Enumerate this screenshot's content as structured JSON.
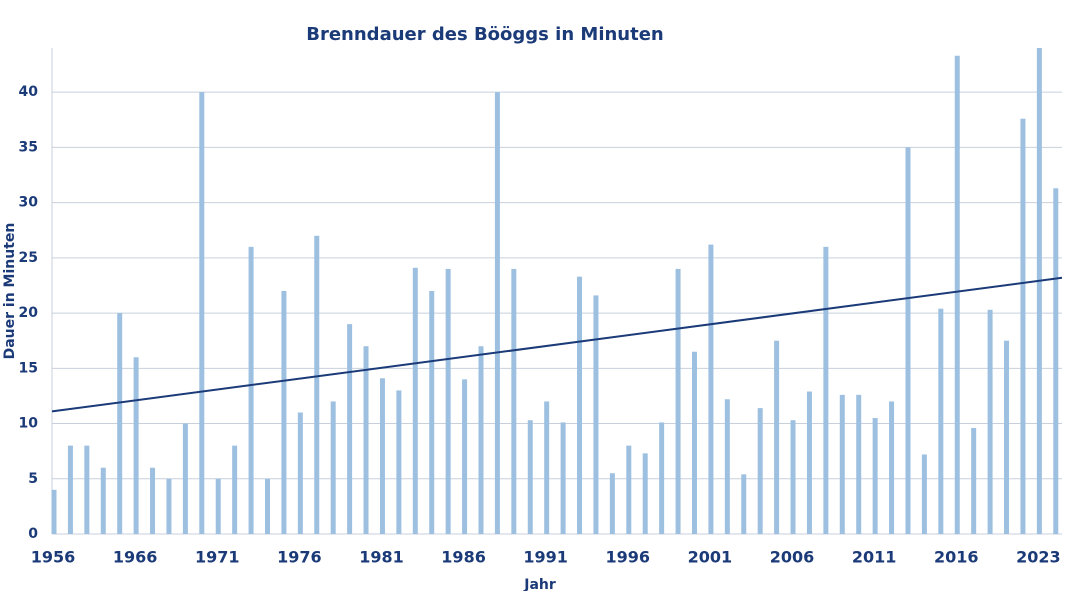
{
  "chart_data": {
    "type": "bar",
    "title": "Brenndauer des Bööggs in Minuten",
    "x_label": "Jahr",
    "y_label": "Dauer in Minuten",
    "categories": [
      "1956",
      null,
      null,
      null,
      null,
      "1966",
      null,
      null,
      null,
      null,
      "1971",
      null,
      null,
      null,
      null,
      "1976",
      null,
      null,
      null,
      null,
      "1981",
      null,
      null,
      null,
      null,
      "1986",
      null,
      null,
      null,
      null,
      "1991",
      null,
      null,
      null,
      null,
      "1996",
      null,
      null,
      null,
      null,
      "2001",
      null,
      null,
      null,
      null,
      "2006",
      null,
      null,
      null,
      null,
      "2011",
      null,
      null,
      null,
      null,
      "2016",
      null,
      null,
      null,
      null,
      "2023",
      null
    ],
    "values": [
      4,
      8,
      8,
      6,
      20,
      16,
      6,
      5,
      10,
      40,
      5,
      8,
      26,
      5,
      22,
      11,
      27,
      12,
      19,
      17,
      14.1,
      13,
      24.1,
      22,
      24,
      14,
      17,
      40,
      24,
      10.3,
      12,
      10.1,
      23.3,
      21.6,
      5.5,
      8,
      7.3,
      10.1,
      24,
      16.5,
      26.2,
      12.2,
      5.4,
      11.4,
      17.5,
      10.3,
      12.9,
      26,
      12.6,
      12.6,
      10.5,
      12,
      35,
      7.2,
      20.4,
      43.3,
      9.6,
      20.3,
      17.5,
      37.6,
      44,
      31.3
    ],
    "color": "#9dc0e1",
    "trendline": {
      "start": 11.1,
      "end": 23.2,
      "color": "#1b3a78"
    },
    "ylim": [
      0,
      44
    ],
    "yticks": [
      0,
      5,
      10,
      15,
      20,
      25,
      30,
      35,
      40
    ],
    "grid": true
  }
}
